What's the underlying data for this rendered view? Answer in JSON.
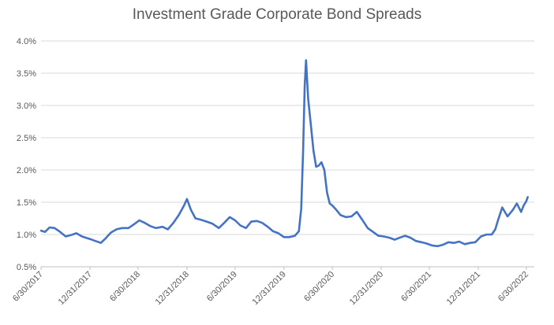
{
  "chart_data": {
    "type": "line",
    "title": "Investment Grade Corporate Bond Spreads",
    "xlabel": "",
    "ylabel": "",
    "grid": true,
    "legend": "none",
    "ylim": [
      0.5,
      4.0
    ],
    "ytick_labels": [
      "0.5%",
      "1.0%",
      "1.5%",
      "2.0%",
      "2.5%",
      "3.0%",
      "3.5%",
      "4.0%"
    ],
    "ytick_values": [
      0.5,
      1.0,
      1.5,
      2.0,
      2.5,
      3.0,
      3.5,
      4.0
    ],
    "xtick_labels": [
      "6/30/2017",
      "12/31/2017",
      "6/30/2018",
      "12/31/2018",
      "6/30/2019",
      "12/31/2019",
      "6/30/2020",
      "12/31/2020",
      "6/30/2021",
      "12/31/2021",
      "6/30/2022"
    ],
    "xtick_values": [
      "2017-06-30",
      "2017-12-31",
      "2018-06-30",
      "2018-12-31",
      "2019-06-30",
      "2019-12-31",
      "2020-06-30",
      "2020-12-31",
      "2021-06-30",
      "2021-12-31",
      "2022-06-30"
    ],
    "line_color": "#4472C4",
    "series": [
      {
        "x": [
          "2017-06-30",
          "2017-07-15",
          "2017-08-01",
          "2017-08-20",
          "2017-09-10",
          "2017-10-01",
          "2017-10-20",
          "2017-11-10",
          "2017-12-01",
          "2017-12-31",
          "2018-01-20",
          "2018-02-10",
          "2018-02-28",
          "2018-03-20",
          "2018-04-10",
          "2018-05-01",
          "2018-05-25",
          "2018-06-15",
          "2018-07-05",
          "2018-07-25",
          "2018-08-15",
          "2018-09-05",
          "2018-09-30",
          "2018-10-20",
          "2018-11-10",
          "2018-11-30",
          "2018-12-20",
          "2018-12-31",
          "2019-01-15",
          "2019-02-01",
          "2019-02-20",
          "2019-03-15",
          "2019-04-05",
          "2019-04-30",
          "2019-05-20",
          "2019-06-10",
          "2019-06-30",
          "2019-07-20",
          "2019-08-10",
          "2019-08-30",
          "2019-09-20",
          "2019-10-10",
          "2019-10-31",
          "2019-11-20",
          "2019-12-10",
          "2019-12-31",
          "2020-01-20",
          "2020-02-10",
          "2020-02-25",
          "2020-03-05",
          "2020-03-12",
          "2020-03-18",
          "2020-03-23",
          "2020-03-31",
          "2020-04-10",
          "2020-04-20",
          "2020-04-30",
          "2020-05-10",
          "2020-05-20",
          "2020-05-31",
          "2020-06-10",
          "2020-06-20",
          "2020-06-30",
          "2020-07-15",
          "2020-07-31",
          "2020-08-20",
          "2020-09-10",
          "2020-09-30",
          "2020-10-20",
          "2020-11-10",
          "2020-11-30",
          "2020-12-20",
          "2021-01-10",
          "2021-01-31",
          "2021-02-20",
          "2021-03-10",
          "2021-03-31",
          "2021-04-20",
          "2021-05-10",
          "2021-05-31",
          "2021-06-20",
          "2021-07-10",
          "2021-07-31",
          "2021-08-20",
          "2021-09-10",
          "2021-09-30",
          "2021-10-20",
          "2021-11-10",
          "2021-11-30",
          "2021-12-20",
          "2022-01-10",
          "2022-01-31",
          "2022-02-20",
          "2022-03-05",
          "2022-03-15",
          "2022-03-31",
          "2022-04-20",
          "2022-05-10",
          "2022-05-25",
          "2022-06-10",
          "2022-06-20",
          "2022-06-30",
          "2022-07-05"
        ],
        "values": [
          1.06,
          1.04,
          1.11,
          1.1,
          1.04,
          0.97,
          0.99,
          1.02,
          0.97,
          0.93,
          0.9,
          0.87,
          0.94,
          1.03,
          1.08,
          1.1,
          1.1,
          1.16,
          1.22,
          1.18,
          1.13,
          1.1,
          1.12,
          1.08,
          1.18,
          1.3,
          1.45,
          1.55,
          1.38,
          1.25,
          1.23,
          1.2,
          1.17,
          1.1,
          1.18,
          1.27,
          1.22,
          1.14,
          1.1,
          1.2,
          1.21,
          1.18,
          1.12,
          1.05,
          1.02,
          0.96,
          0.96,
          0.98,
          1.05,
          1.4,
          2.3,
          3.3,
          3.7,
          3.1,
          2.7,
          2.3,
          2.05,
          2.07,
          2.12,
          2.0,
          1.65,
          1.48,
          1.45,
          1.38,
          1.3,
          1.27,
          1.28,
          1.35,
          1.23,
          1.1,
          1.04,
          0.98,
          0.97,
          0.95,
          0.92,
          0.95,
          0.98,
          0.95,
          0.9,
          0.88,
          0.86,
          0.83,
          0.82,
          0.84,
          0.88,
          0.87,
          0.89,
          0.85,
          0.87,
          0.88,
          0.97,
          1.0,
          1.0,
          1.08,
          1.22,
          1.42,
          1.28,
          1.38,
          1.48,
          1.35,
          1.45,
          1.52,
          1.58
        ]
      }
    ]
  }
}
